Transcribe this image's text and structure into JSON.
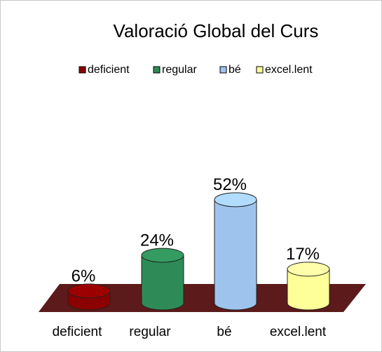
{
  "chart_data": {
    "type": "bar",
    "title": "Valoració Global del Curs",
    "categories": [
      "deficient",
      "regular",
      "bé",
      "excel.lent"
    ],
    "values": [
      6,
      24,
      52,
      17
    ],
    "value_labels": [
      "6%",
      "24%",
      "52%",
      "17%"
    ],
    "colors": [
      "#8b0000",
      "#2e8b57",
      "#9ec4ee",
      "#ffff99"
    ],
    "legend": "top"
  }
}
